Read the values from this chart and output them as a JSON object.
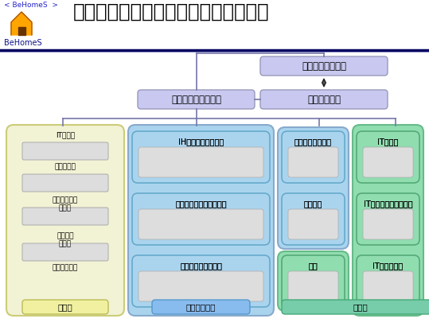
{
  "title": "生活行動応答型省エネシステムの構成",
  "logo_text": "BeHomeS",
  "logo_subtext": "BeHomeS",
  "bg_color": "#ffffff",
  "header_line_color": "#00008b",
  "header_line_color2": "#6666cc",
  "box_行動推定": "行動推定エンジン",
  "box_ホームゲートウェイ": "ホームゲートウェイ",
  "box_協調エンジン": "協調エンジン",
  "box_color_top": "#b8b8f0",
  "section_yellow": "#f5f5dc",
  "section_blue": "#add8f0",
  "section_green": "#90e0b0",
  "section_border_color": "#888888",
  "items_yellow": [
    "IT分電盤",
    "人感センサ",
    "屋内温湿度・\n照度計",
    "屋外放射\n照度計",
    "屋外温湿度計"
  ],
  "label_yellow": "計測用",
  "items_blue_row1": [
    "IHクッキングヒータ",
    "照明調光システム"
  ],
  "items_blue_row2": [
    "ヒートポンプランドリー",
    "エアコン"
  ],
  "items_blue_row3": [
    "ヒートポンプ給湯機"
  ],
  "label_blue": "計測・制御用",
  "items_green_row1": [
    "IT排熱窓"
  ],
  "items_green_row2": [
    "IT昼光利用ブラインド"
  ],
  "items_green_row3": [
    "便座",
    "ITシャッター"
  ],
  "label_green": "制御用",
  "underline_color": "#0000ff",
  "text_color": "#000000",
  "connector_color": "#666699"
}
